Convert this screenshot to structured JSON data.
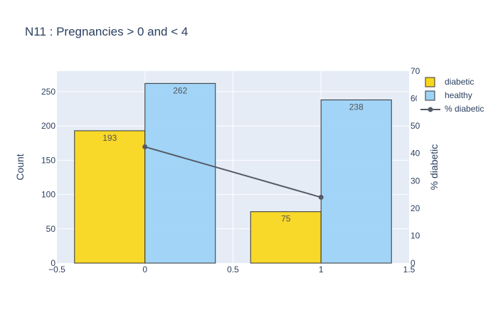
{
  "chart_data": {
    "type": "bar",
    "title": "N11 : Pregnancies > 0 and < 4",
    "x": [
      0,
      1
    ],
    "xlim": [
      -0.5,
      1.5
    ],
    "x_ticks": [
      -0.5,
      0,
      0.5,
      1,
      1.5
    ],
    "x_tick_labels": [
      "−0.5",
      "0",
      "0.5",
      "1",
      "1.5"
    ],
    "ylabel": "Count",
    "ylim": [
      0,
      280
    ],
    "y_ticks": [
      0,
      50,
      100,
      150,
      200,
      250
    ],
    "y2label": "% diabetic",
    "y2lim": [
      0,
      70
    ],
    "y2_ticks": [
      0,
      10,
      20,
      30,
      40,
      50,
      60,
      70
    ],
    "grid": true,
    "legend_position": "top-right",
    "series": [
      {
        "name": "diabetic",
        "type": "bar",
        "axis": "y",
        "values": [
          193,
          75
        ],
        "labels": [
          "193",
          "75"
        ],
        "color": "#f9d71c"
      },
      {
        "name": "healthy",
        "type": "bar",
        "axis": "y",
        "values": [
          262,
          238
        ],
        "labels": [
          "262",
          "238"
        ],
        "color": "#9dd3f7"
      },
      {
        "name": "% diabetic",
        "type": "line",
        "axis": "y2",
        "values": [
          42.4,
          24.0
        ],
        "color": "#555b66"
      }
    ]
  }
}
